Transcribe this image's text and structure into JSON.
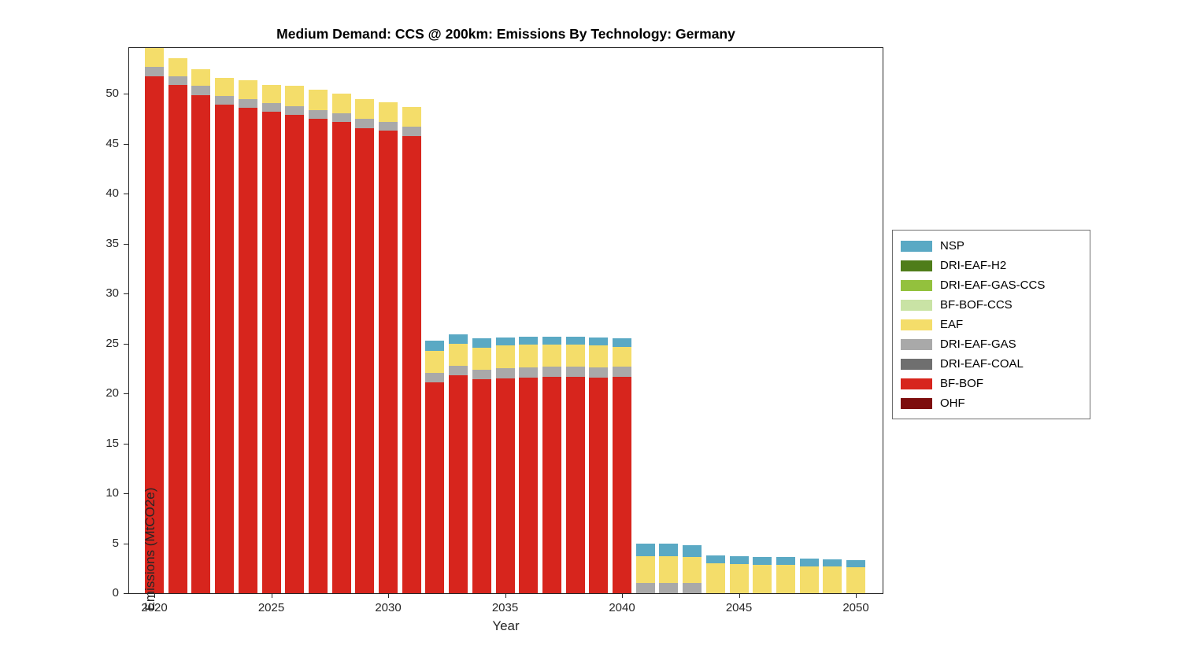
{
  "chart_data": {
    "type": "bar",
    "stacked": true,
    "title": "Medium Demand: CCS @ 200km: Emissions By Technology: Germany",
    "xlabel": "Year",
    "ylabel": "Emissions (MtCO2e)",
    "ylim": [
      0,
      54.6
    ],
    "yticks": [
      0,
      5,
      10,
      15,
      20,
      25,
      30,
      35,
      40,
      45,
      50
    ],
    "xticks": [
      2020,
      2025,
      2030,
      2035,
      2040,
      2045,
      2050
    ],
    "grid": false,
    "legend_position": "right-outside",
    "years": [
      2020,
      2021,
      2022,
      2023,
      2024,
      2025,
      2026,
      2027,
      2028,
      2029,
      2030,
      2031,
      2032,
      2033,
      2034,
      2035,
      2036,
      2037,
      2038,
      2039,
      2040,
      2041,
      2042,
      2043,
      2044,
      2045,
      2046,
      2047,
      2048,
      2049,
      2050
    ],
    "series": [
      {
        "name": "OHF",
        "color": "#7d0d0d",
        "values": [
          0,
          0,
          0,
          0,
          0,
          0,
          0,
          0,
          0,
          0,
          0,
          0,
          0,
          0,
          0,
          0,
          0,
          0,
          0,
          0,
          0,
          0,
          0,
          0,
          0,
          0,
          0,
          0,
          0,
          0,
          0
        ]
      },
      {
        "name": "BF-BOF",
        "color": "#d7251d",
        "values": [
          51.8,
          50.9,
          49.9,
          48.9,
          48.6,
          48.2,
          47.9,
          47.5,
          47.2,
          46.6,
          46.3,
          45.8,
          21.1,
          21.8,
          21.4,
          21.5,
          21.6,
          21.7,
          21.7,
          21.6,
          21.7,
          0,
          0,
          0,
          0,
          0,
          0,
          0,
          0,
          0,
          0
        ]
      },
      {
        "name": "DRI-EAF-COAL",
        "color": "#6f6f6f",
        "values": [
          0,
          0,
          0,
          0,
          0,
          0,
          0,
          0,
          0,
          0,
          0,
          0,
          0,
          0,
          0,
          0,
          0,
          0,
          0,
          0,
          0,
          0,
          0,
          0,
          0,
          0,
          0,
          0,
          0,
          0,
          0
        ]
      },
      {
        "name": "DRI-EAF-GAS",
        "color": "#a9a9a9",
        "values": [
          0.9,
          0.9,
          0.9,
          0.9,
          0.9,
          0.9,
          0.9,
          0.9,
          0.9,
          0.9,
          0.9,
          0.9,
          1.0,
          1.0,
          1.0,
          1.0,
          1.0,
          1.0,
          1.0,
          1.0,
          1.0,
          1.0,
          1.0,
          1.0,
          0,
          0,
          0,
          0,
          0,
          0,
          0
        ]
      },
      {
        "name": "EAF",
        "color": "#f4dd6a",
        "values": [
          1.9,
          1.8,
          1.7,
          1.8,
          1.9,
          1.8,
          2.0,
          2.0,
          1.9,
          2.0,
          2.0,
          2.0,
          2.2,
          2.2,
          2.2,
          2.3,
          2.3,
          2.2,
          2.2,
          2.2,
          2.0,
          2.7,
          2.7,
          2.6,
          3.0,
          2.9,
          2.8,
          2.8,
          2.7,
          2.7,
          2.6
        ]
      },
      {
        "name": "BF-BOF-CCS",
        "color": "#c9e3a5",
        "values": [
          0,
          0,
          0,
          0,
          0,
          0,
          0,
          0,
          0,
          0,
          0,
          0,
          0,
          0,
          0,
          0,
          0,
          0,
          0,
          0,
          0,
          0,
          0,
          0,
          0,
          0,
          0,
          0,
          0,
          0,
          0
        ]
      },
      {
        "name": "DRI-EAF-GAS-CCS",
        "color": "#93c13d",
        "values": [
          0,
          0,
          0,
          0,
          0,
          0,
          0,
          0,
          0,
          0,
          0,
          0,
          0,
          0,
          0,
          0,
          0,
          0,
          0,
          0,
          0,
          0,
          0,
          0,
          0,
          0,
          0,
          0,
          0,
          0,
          0
        ]
      },
      {
        "name": "DRI-EAF-H2",
        "color": "#4f7d1a",
        "values": [
          0,
          0,
          0,
          0,
          0,
          0,
          0,
          0,
          0,
          0,
          0,
          0,
          0,
          0,
          0,
          0,
          0,
          0,
          0,
          0,
          0,
          0,
          0,
          0,
          0,
          0,
          0,
          0,
          0,
          0,
          0
        ]
      },
      {
        "name": "NSP",
        "color": "#5aa9c4",
        "values": [
          0,
          0,
          0,
          0,
          0,
          0,
          0,
          0,
          0,
          0,
          0,
          0,
          1.0,
          0.9,
          0.9,
          0.8,
          0.8,
          0.8,
          0.8,
          0.8,
          0.8,
          1.3,
          1.3,
          1.2,
          0.8,
          0.8,
          0.8,
          0.8,
          0.8,
          0.7,
          0.7
        ]
      }
    ],
    "legend_entries": [
      "NSP",
      "DRI-EAF-H2",
      "DRI-EAF-GAS-CCS",
      "BF-BOF-CCS",
      "EAF",
      "DRI-EAF-GAS",
      "DRI-EAF-COAL",
      "BF-BOF",
      "OHF"
    ]
  }
}
